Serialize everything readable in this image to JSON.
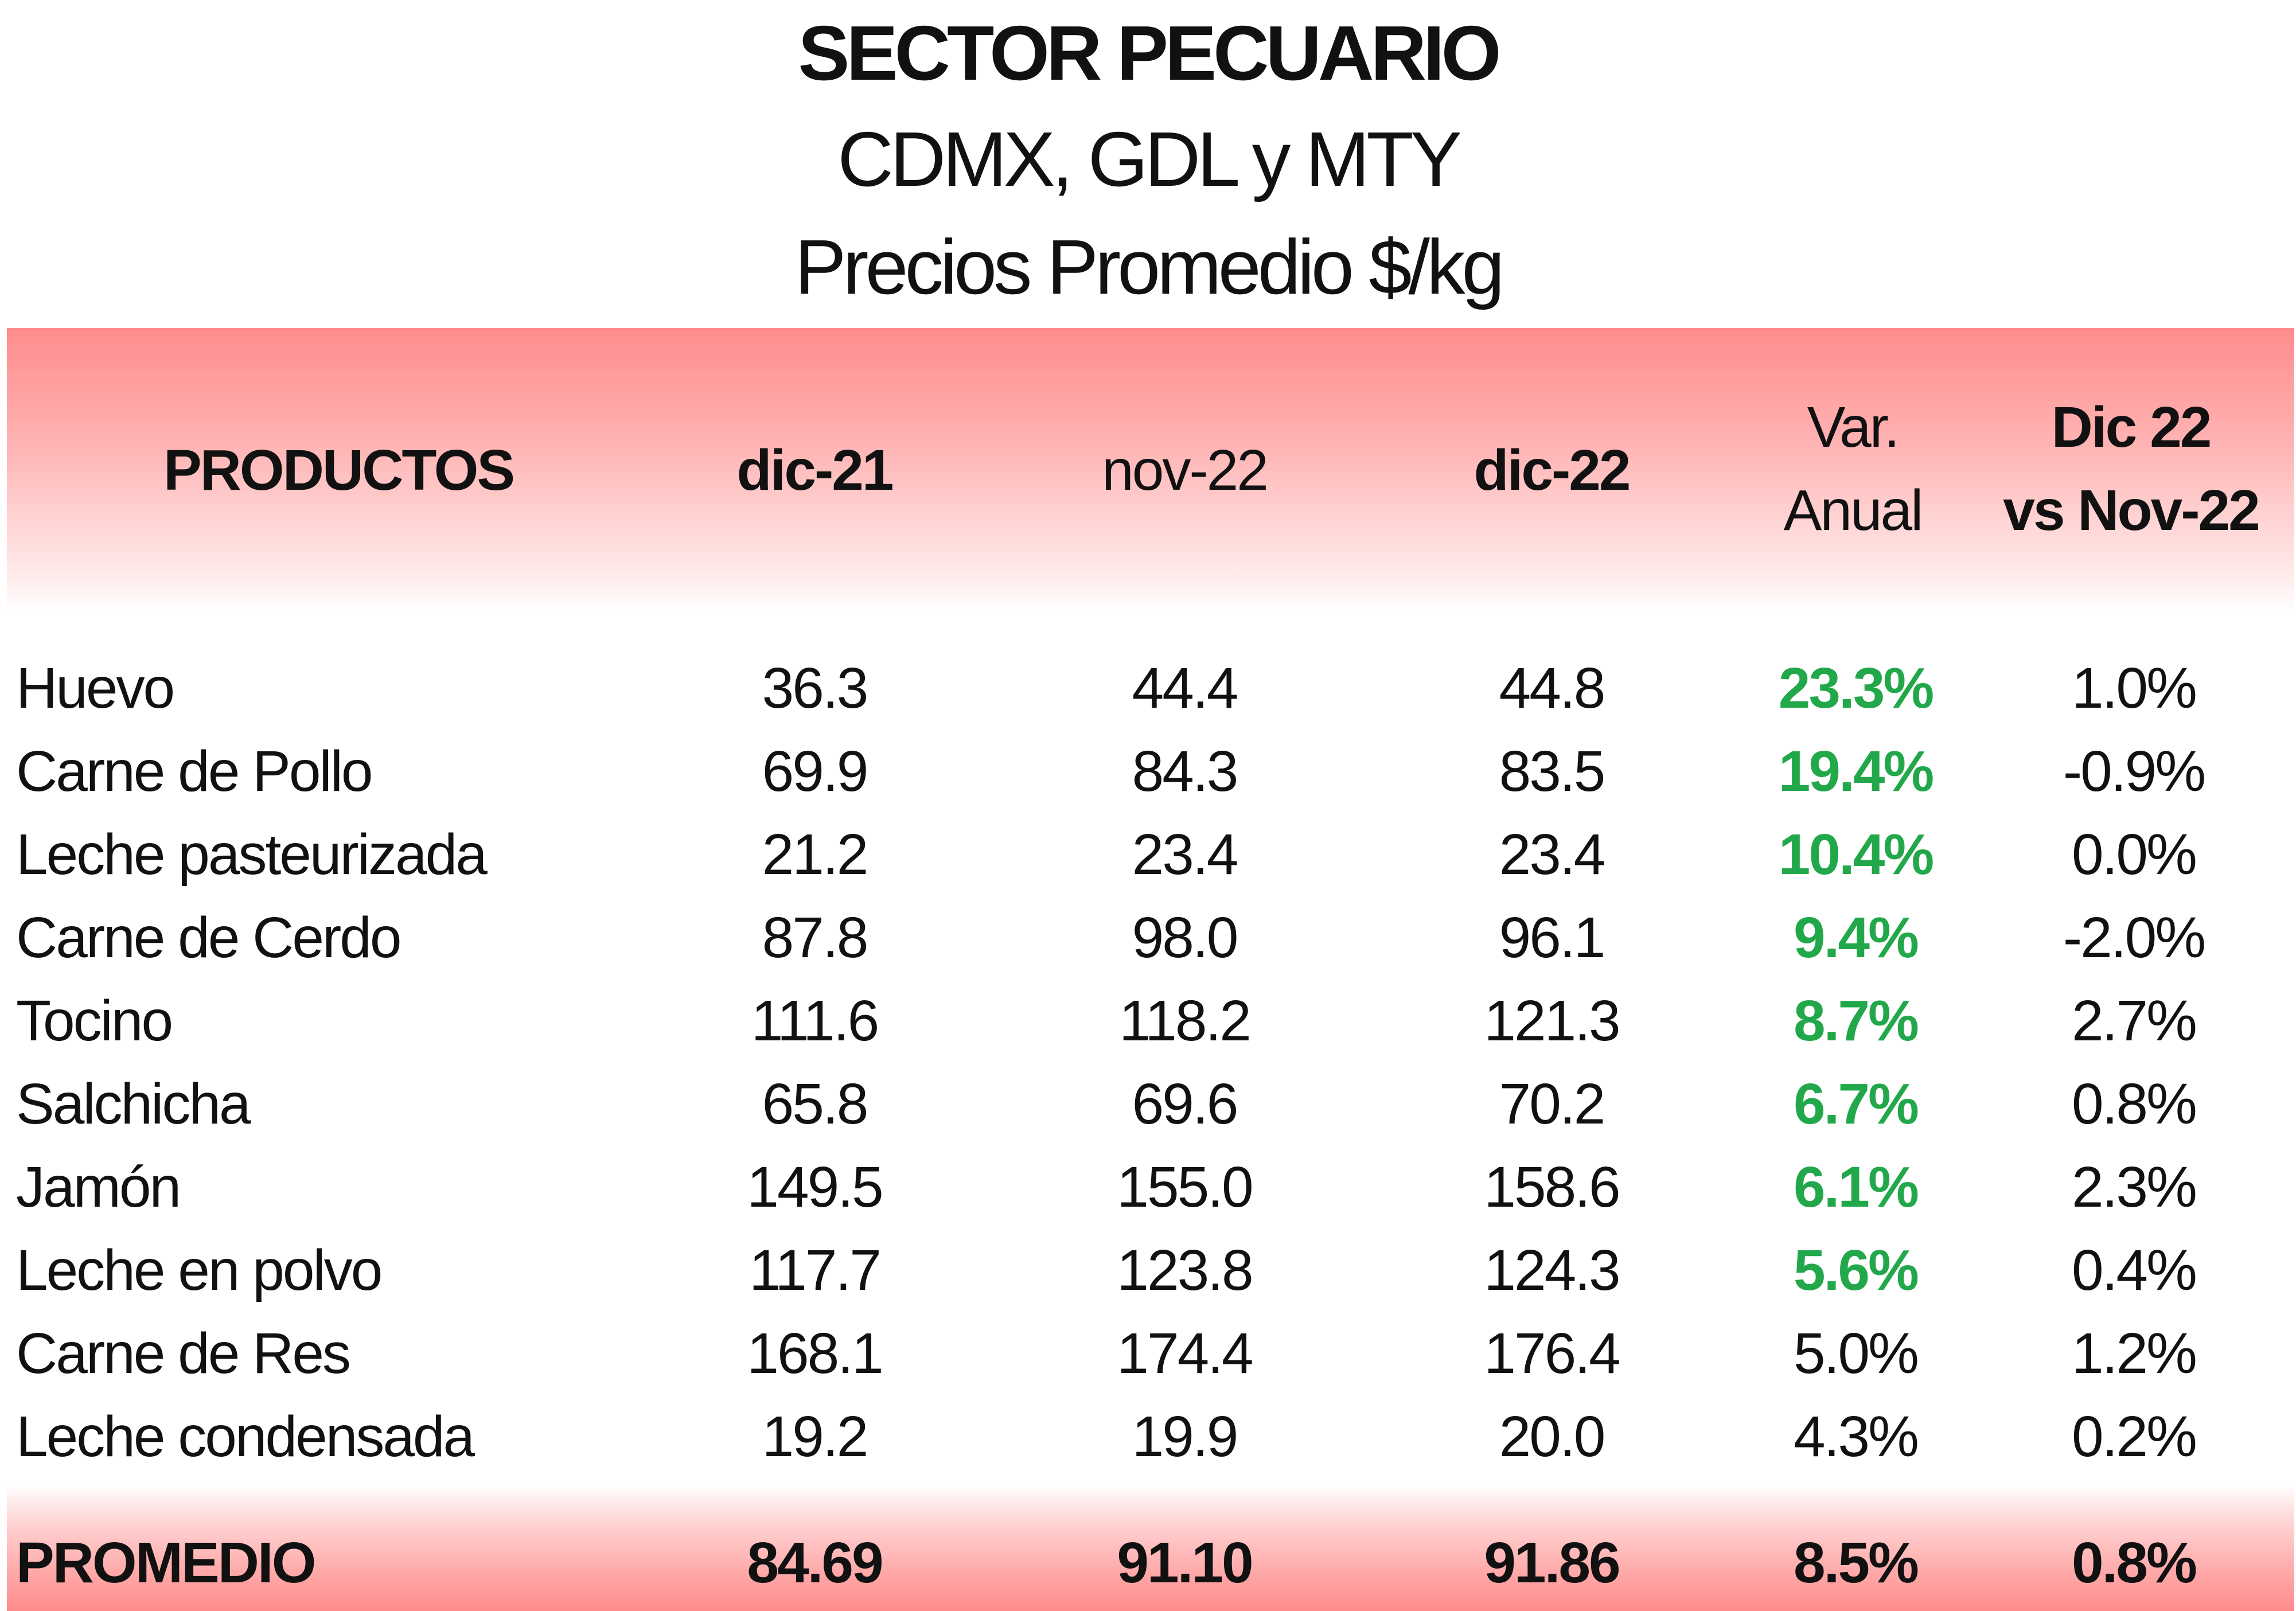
{
  "titles": {
    "line1": "SECTOR PECUARIO",
    "line2": "CDMX, GDL y MTY",
    "line3": "Precios Promedio $/kg"
  },
  "colors": {
    "header_band": "#ff8c8c",
    "positive_highlight": "#22a84a"
  },
  "table": {
    "headers": {
      "product": "PRODUCTOS",
      "col1": "dic-21",
      "col2": "nov-22",
      "col3": "dic-22",
      "col4_line1": "Var.",
      "col4_line2": "Anual",
      "col5_line1": "Dic 22",
      "col5_line2": "vs Nov-22"
    },
    "rows": [
      {
        "product": "Huevo",
        "dic21": "36.3",
        "nov22": "44.4",
        "dic22": "44.8",
        "var_anual": "23.3%",
        "dic_vs_nov": "1.0%",
        "highlight": true
      },
      {
        "product": "Carne de Pollo",
        "dic21": "69.9",
        "nov22": "84.3",
        "dic22": "83.5",
        "var_anual": "19.4%",
        "dic_vs_nov": "-0.9%",
        "highlight": true
      },
      {
        "product": "Leche pasteurizada",
        "dic21": "21.2",
        "nov22": "23.4",
        "dic22": "23.4",
        "var_anual": "10.4%",
        "dic_vs_nov": "0.0%",
        "highlight": true
      },
      {
        "product": "Carne de Cerdo",
        "dic21": "87.8",
        "nov22": "98.0",
        "dic22": "96.1",
        "var_anual": "9.4%",
        "dic_vs_nov": "-2.0%",
        "highlight": true
      },
      {
        "product": "Tocino",
        "dic21": "111.6",
        "nov22": "118.2",
        "dic22": "121.3",
        "var_anual": "8.7%",
        "dic_vs_nov": "2.7%",
        "highlight": true
      },
      {
        "product": "Salchicha",
        "dic21": "65.8",
        "nov22": "69.6",
        "dic22": "70.2",
        "var_anual": "6.7%",
        "dic_vs_nov": "0.8%",
        "highlight": true
      },
      {
        "product": "Jamón",
        "dic21": "149.5",
        "nov22": "155.0",
        "dic22": "158.6",
        "var_anual": "6.1%",
        "dic_vs_nov": "2.3%",
        "highlight": true
      },
      {
        "product": "Leche en polvo",
        "dic21": "117.7",
        "nov22": "123.8",
        "dic22": "124.3",
        "var_anual": "5.6%",
        "dic_vs_nov": "0.4%",
        "highlight": true
      },
      {
        "product": "Carne de Res",
        "dic21": "168.1",
        "nov22": "174.4",
        "dic22": "176.4",
        "var_anual": "5.0%",
        "dic_vs_nov": "1.2%",
        "highlight": false
      },
      {
        "product": "Leche condensada",
        "dic21": "19.2",
        "nov22": "19.9",
        "dic22": "20.0",
        "var_anual": "4.3%",
        "dic_vs_nov": "0.2%",
        "highlight": false
      }
    ],
    "footer": {
      "label": "PROMEDIO",
      "dic21": "84.69",
      "nov22": "91.10",
      "dic22": "91.86",
      "var_anual": "8.5%",
      "dic_vs_nov": "0.8%"
    }
  }
}
